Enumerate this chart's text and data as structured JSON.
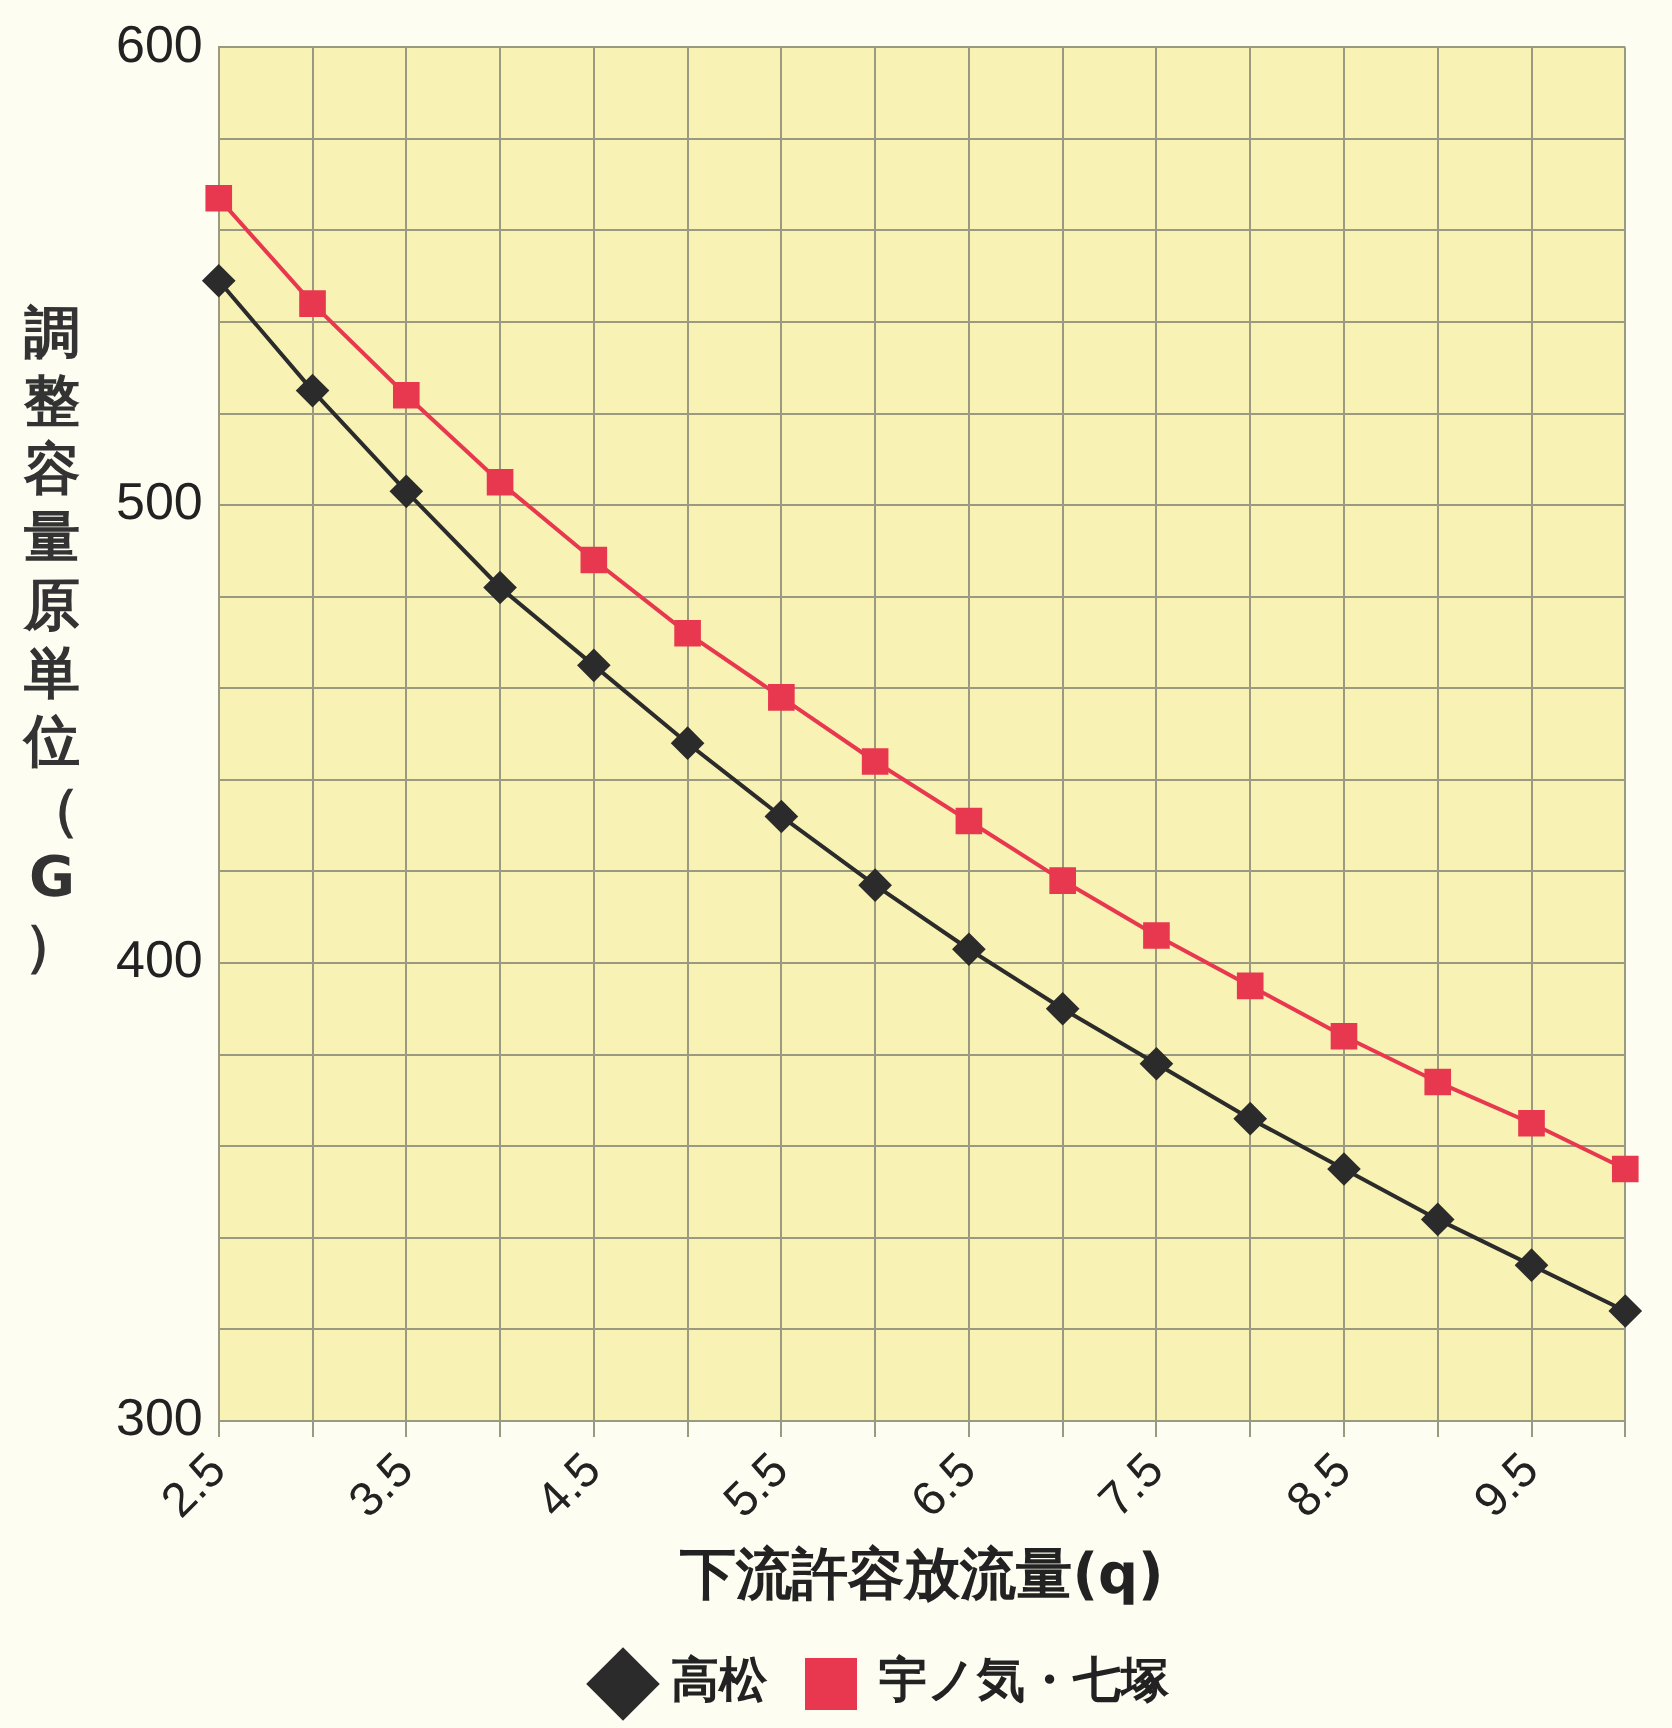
{
  "chart_data": {
    "type": "line",
    "xlabel": "下流許容放流量(q)",
    "ylabel": "調整容量原単位（G）",
    "categories": [
      "2.5",
      null,
      "3.5",
      null,
      "4.5",
      null,
      "5.5",
      null,
      "6.5",
      null,
      "7.5",
      null,
      "8.5",
      null,
      "9.5",
      null
    ],
    "series": [
      {
        "name": "高松",
        "color": "#2b2b2b",
        "marker": "diamond",
        "values": [
          549,
          525,
          503,
          482,
          465,
          448,
          432,
          417,
          403,
          390,
          378,
          366,
          355,
          344,
          334,
          324
        ]
      },
      {
        "name": "宇ノ気・七塚",
        "color": "#e8384f",
        "marker": "square",
        "values": [
          567,
          544,
          524,
          505,
          488,
          472,
          458,
          444,
          431,
          418,
          406,
          395,
          384,
          374,
          365,
          355
        ]
      }
    ],
    "ylim": [
      300,
      600
    ],
    "yticks": [
      300,
      {
        "value": 320,
        "label": null
      },
      {
        "value": 340,
        "label": null
      },
      {
        "value": 360,
        "label": null
      },
      {
        "value": 380,
        "label": null
      },
      400,
      {
        "value": 420,
        "label": null
      },
      {
        "value": 440,
        "label": null
      },
      {
        "value": 460,
        "label": null
      },
      {
        "value": 480,
        "label": null
      },
      500,
      {
        "value": 520,
        "label": null
      },
      {
        "value": 540,
        "label": null
      },
      {
        "value": 560,
        "label": null
      },
      {
        "value": 580,
        "label": null
      },
      600
    ],
    "grid": true,
    "legend": "bottom",
    "line_style": "solid"
  }
}
